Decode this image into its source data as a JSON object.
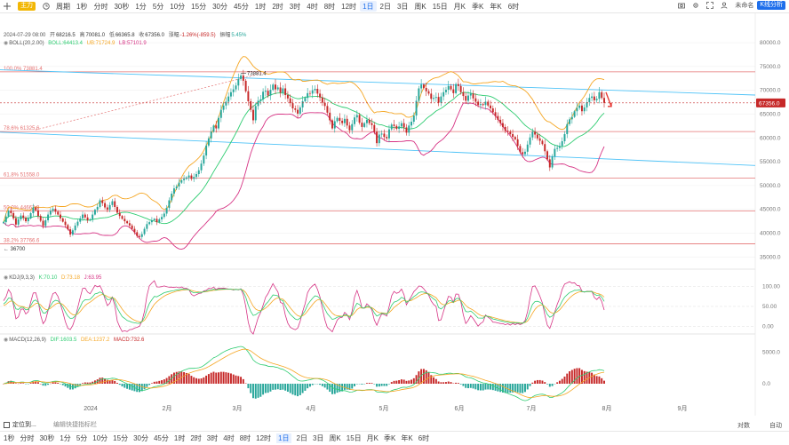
{
  "toolbar": {
    "brand": "主力",
    "period": "周期",
    "intervals": [
      "1秒",
      "分时",
      "30秒",
      "1分",
      "5分",
      "10分",
      "15分",
      "30分",
      "45分",
      "1时",
      "2时",
      "3时",
      "4时",
      "8时",
      "12时",
      "1日",
      "2日",
      "3日",
      "周K",
      "15日",
      "月K",
      "季K",
      "年K",
      "6时"
    ],
    "active_interval": "1日",
    "login": "未命名",
    "k_analysis": "K线分析"
  },
  "info": {
    "date": "2024-07-29 08:00",
    "open_label": "开",
    "open": "68216.5",
    "high_label": "高",
    "high": "70081.0",
    "low_label": "低",
    "low": "66365.8",
    "close_label": "收",
    "close": "67356.0",
    "change_label": "涨幅",
    "change": "-1.26%(-859.5)",
    "amp_label": "振幅",
    "amp": "5.45%"
  },
  "boll": {
    "label": "BOLL(20,2.00)",
    "mb": "BOLL:64413.4",
    "ub": "UB:71724.9",
    "lb": "LB:57101.9"
  },
  "kdj": {
    "label": "KDJ(9,3,3)",
    "k": "K:70.10",
    "d": "D:73.18",
    "j": "J:63.95"
  },
  "macd": {
    "label": "MACD(12,26,9)",
    "dif": "DIF:1603.5",
    "dea": "DEA:1237.2",
    "macd": "MACD:732.6"
  },
  "fib": [
    {
      "label": "100.0% 73881.4",
      "value": 73881.4
    },
    {
      "label": "78.6% 61325.6",
      "value": 61325.6
    },
    {
      "label": "61.8% 51558.0",
      "value": 51558.0
    },
    {
      "label": "50.0% 44662.9",
      "value": 44662.9
    },
    {
      "label": "38.2% 37766.6",
      "value": 37766.6
    }
  ],
  "annotations": {
    "high_label": "73881.4",
    "low_label": "36700",
    "price_tag": "67356.0"
  },
  "bottom": {
    "locate": "定位到...",
    "shortcut": "编辑快捷指标栏",
    "intervals": [
      "1秒",
      "分时",
      "30秒",
      "1分",
      "5分",
      "10分",
      "15分",
      "30分",
      "45分",
      "1时",
      "2时",
      "3时",
      "4时",
      "8时",
      "12时",
      "1日",
      "2日",
      "3日",
      "周K",
      "15日",
      "月K",
      "季K",
      "年K",
      "6时"
    ],
    "active_interval": "1日",
    "log_label": "对数",
    "auto_label": "自动"
  },
  "colors": {
    "up": "#26a69a",
    "down": "#c62828",
    "boll_ub": "#f5a623",
    "boll_mb": "#2ecc71",
    "boll_lb": "#d63384",
    "fib": "#e57373",
    "channel": "#4fc3f7",
    "k": "#2ecc71",
    "d": "#f5a623",
    "j": "#d63384",
    "dif": "#2ecc71",
    "dea": "#f5a623"
  },
  "chart_data": [
    {
      "type": "candlestick",
      "title": "",
      "x_ticks": [
        "2024",
        "2月",
        "3月",
        "4月",
        "5月",
        "6月",
        "7月",
        "8月",
        "9月"
      ],
      "y_ticks": [
        35000,
        40000,
        45000,
        50000,
        55000,
        60000,
        65000,
        70000,
        75000,
        80000
      ],
      "ylim": [
        33000,
        81500
      ],
      "close_series": [
        42300,
        43500,
        44700,
        44200,
        43100,
        41800,
        42900,
        43700,
        43200,
        42500,
        43100,
        44200,
        45400,
        44800,
        43600,
        42600,
        41500,
        42700,
        43900,
        44700,
        45100,
        44500,
        43900,
        43100,
        42400,
        41700,
        40800,
        39700,
        40600,
        41600,
        42400,
        43100,
        43900,
        43300,
        42700,
        42900,
        43900,
        44900,
        45500,
        46900,
        46300,
        45400,
        44900,
        45900,
        46700,
        45500,
        44300,
        43600,
        43000,
        42500,
        42100,
        41600,
        40900,
        40200,
        39400,
        39200,
        39800,
        40900,
        41900,
        42300,
        42700,
        43000,
        42300,
        42900,
        43400,
        44100,
        45300,
        46900,
        48300,
        49400,
        49800,
        50600,
        51100,
        51400,
        51700,
        52100,
        51400,
        51800,
        52400,
        53200,
        54600,
        56300,
        58400,
        59900,
        61300,
        62600,
        62000,
        64200,
        65900,
        66800,
        67600,
        68700,
        69600,
        70200,
        71000,
        72400,
        73100,
        72000,
        69800,
        67700,
        65900,
        63700,
        66700,
        67800,
        68100,
        69700,
        69900,
        68900,
        70100,
        71200,
        70200,
        70600,
        69500,
        70400,
        69000,
        68300,
        67300,
        66200,
        65900,
        65100,
        66400,
        67700,
        68400,
        69400,
        69300,
        70000,
        70300,
        69300,
        68500,
        67400,
        66700,
        65300,
        63700,
        62000,
        63500,
        64200,
        63600,
        63100,
        64000,
        62600,
        61600,
        62900,
        64300,
        64800,
        63200,
        62300,
        63100,
        63800,
        63100,
        62700,
        61300,
        58900,
        60700,
        60900,
        60200,
        59900,
        61800,
        62800,
        62500,
        61900,
        62400,
        63100,
        62200,
        61100,
        62600,
        63400,
        64700,
        67800,
        70400,
        71200,
        70500,
        69800,
        69300,
        68200,
        68400,
        68600,
        67400,
        68700,
        69600,
        70100,
        70900,
        70200,
        69400,
        71300,
        70900,
        69600,
        68800,
        67800,
        68900,
        69300,
        68300,
        67600,
        66900,
        67100,
        66900,
        67600,
        66800,
        66200,
        65400,
        64600,
        63800,
        63100,
        62300,
        61500,
        61300,
        60800,
        60200,
        59700,
        58300,
        57000,
        56600,
        57100,
        58600,
        60100,
        61300,
        60700,
        59900,
        59400,
        58700,
        57200,
        55500,
        53800,
        56100,
        57700,
        57900,
        58300,
        59300,
        60800,
        62900,
        63900,
        64400,
        65600,
        66300,
        66800,
        65600,
        66400,
        67500,
        68400,
        68700,
        67900,
        68200,
        69600,
        68400,
        67356
      ],
      "series": [
        {
          "name": "BOLL",
          "values": "middle band"
        },
        {
          "name": "UB",
          "values": "upper band"
        },
        {
          "name": "LB",
          "values": "lower band"
        }
      ],
      "last_close": 67356.0
    },
    {
      "type": "line",
      "title": "KDJ(9,3,3)",
      "y_ticks": [
        0,
        50,
        100
      ],
      "ylim": [
        -10,
        110
      ],
      "series": [
        {
          "name": "K",
          "last": 70.1
        },
        {
          "name": "D",
          "last": 73.18
        },
        {
          "name": "J",
          "last": 63.95
        }
      ]
    },
    {
      "type": "bar",
      "title": "MACD(12,26,9)",
      "y_ticks": [
        0.0,
        5000.0
      ],
      "series": [
        {
          "name": "DIF",
          "last": 1603.5
        },
        {
          "name": "DEA",
          "last": 1237.2
        },
        {
          "name": "MACD",
          "last": 732.6
        }
      ]
    }
  ]
}
